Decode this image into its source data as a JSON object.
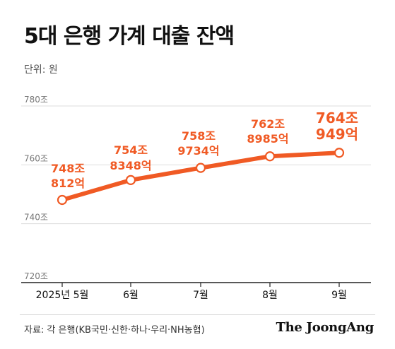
{
  "title": "5대 은행 가계 대출 잔액",
  "unit_label": "단위: 원",
  "source": "자료: 각 은행(KB국민·신한·하나·우리·NH농협)",
  "brand": "The JoongAng",
  "colors": {
    "accent": "#f05a24",
    "axis": "#222222",
    "grid": "#dddddd",
    "text": "#111111"
  },
  "chart_data": {
    "type": "line",
    "title": "5대 은행 가계 대출 잔액",
    "xlabel": "",
    "ylabel": "단위: 원",
    "categories": [
      "2025년 5월",
      "6월",
      "7월",
      "8월",
      "9월"
    ],
    "values_trillion": [
      748.0812,
      754.8348,
      758.9734,
      762.8985,
      764.0949
    ],
    "data_labels": [
      [
        "748조",
        "812억"
      ],
      [
        "754조",
        "8348억"
      ],
      [
        "758조",
        "9734억"
      ],
      [
        "762조",
        "8985억"
      ],
      [
        "764조",
        "949억"
      ]
    ],
    "y_ticks": [
      720,
      740,
      760,
      780
    ],
    "y_tick_labels": [
      "720조",
      "740조",
      "760조",
      "780조"
    ],
    "ylim": [
      720,
      780
    ],
    "grid": true,
    "legend": "none"
  }
}
